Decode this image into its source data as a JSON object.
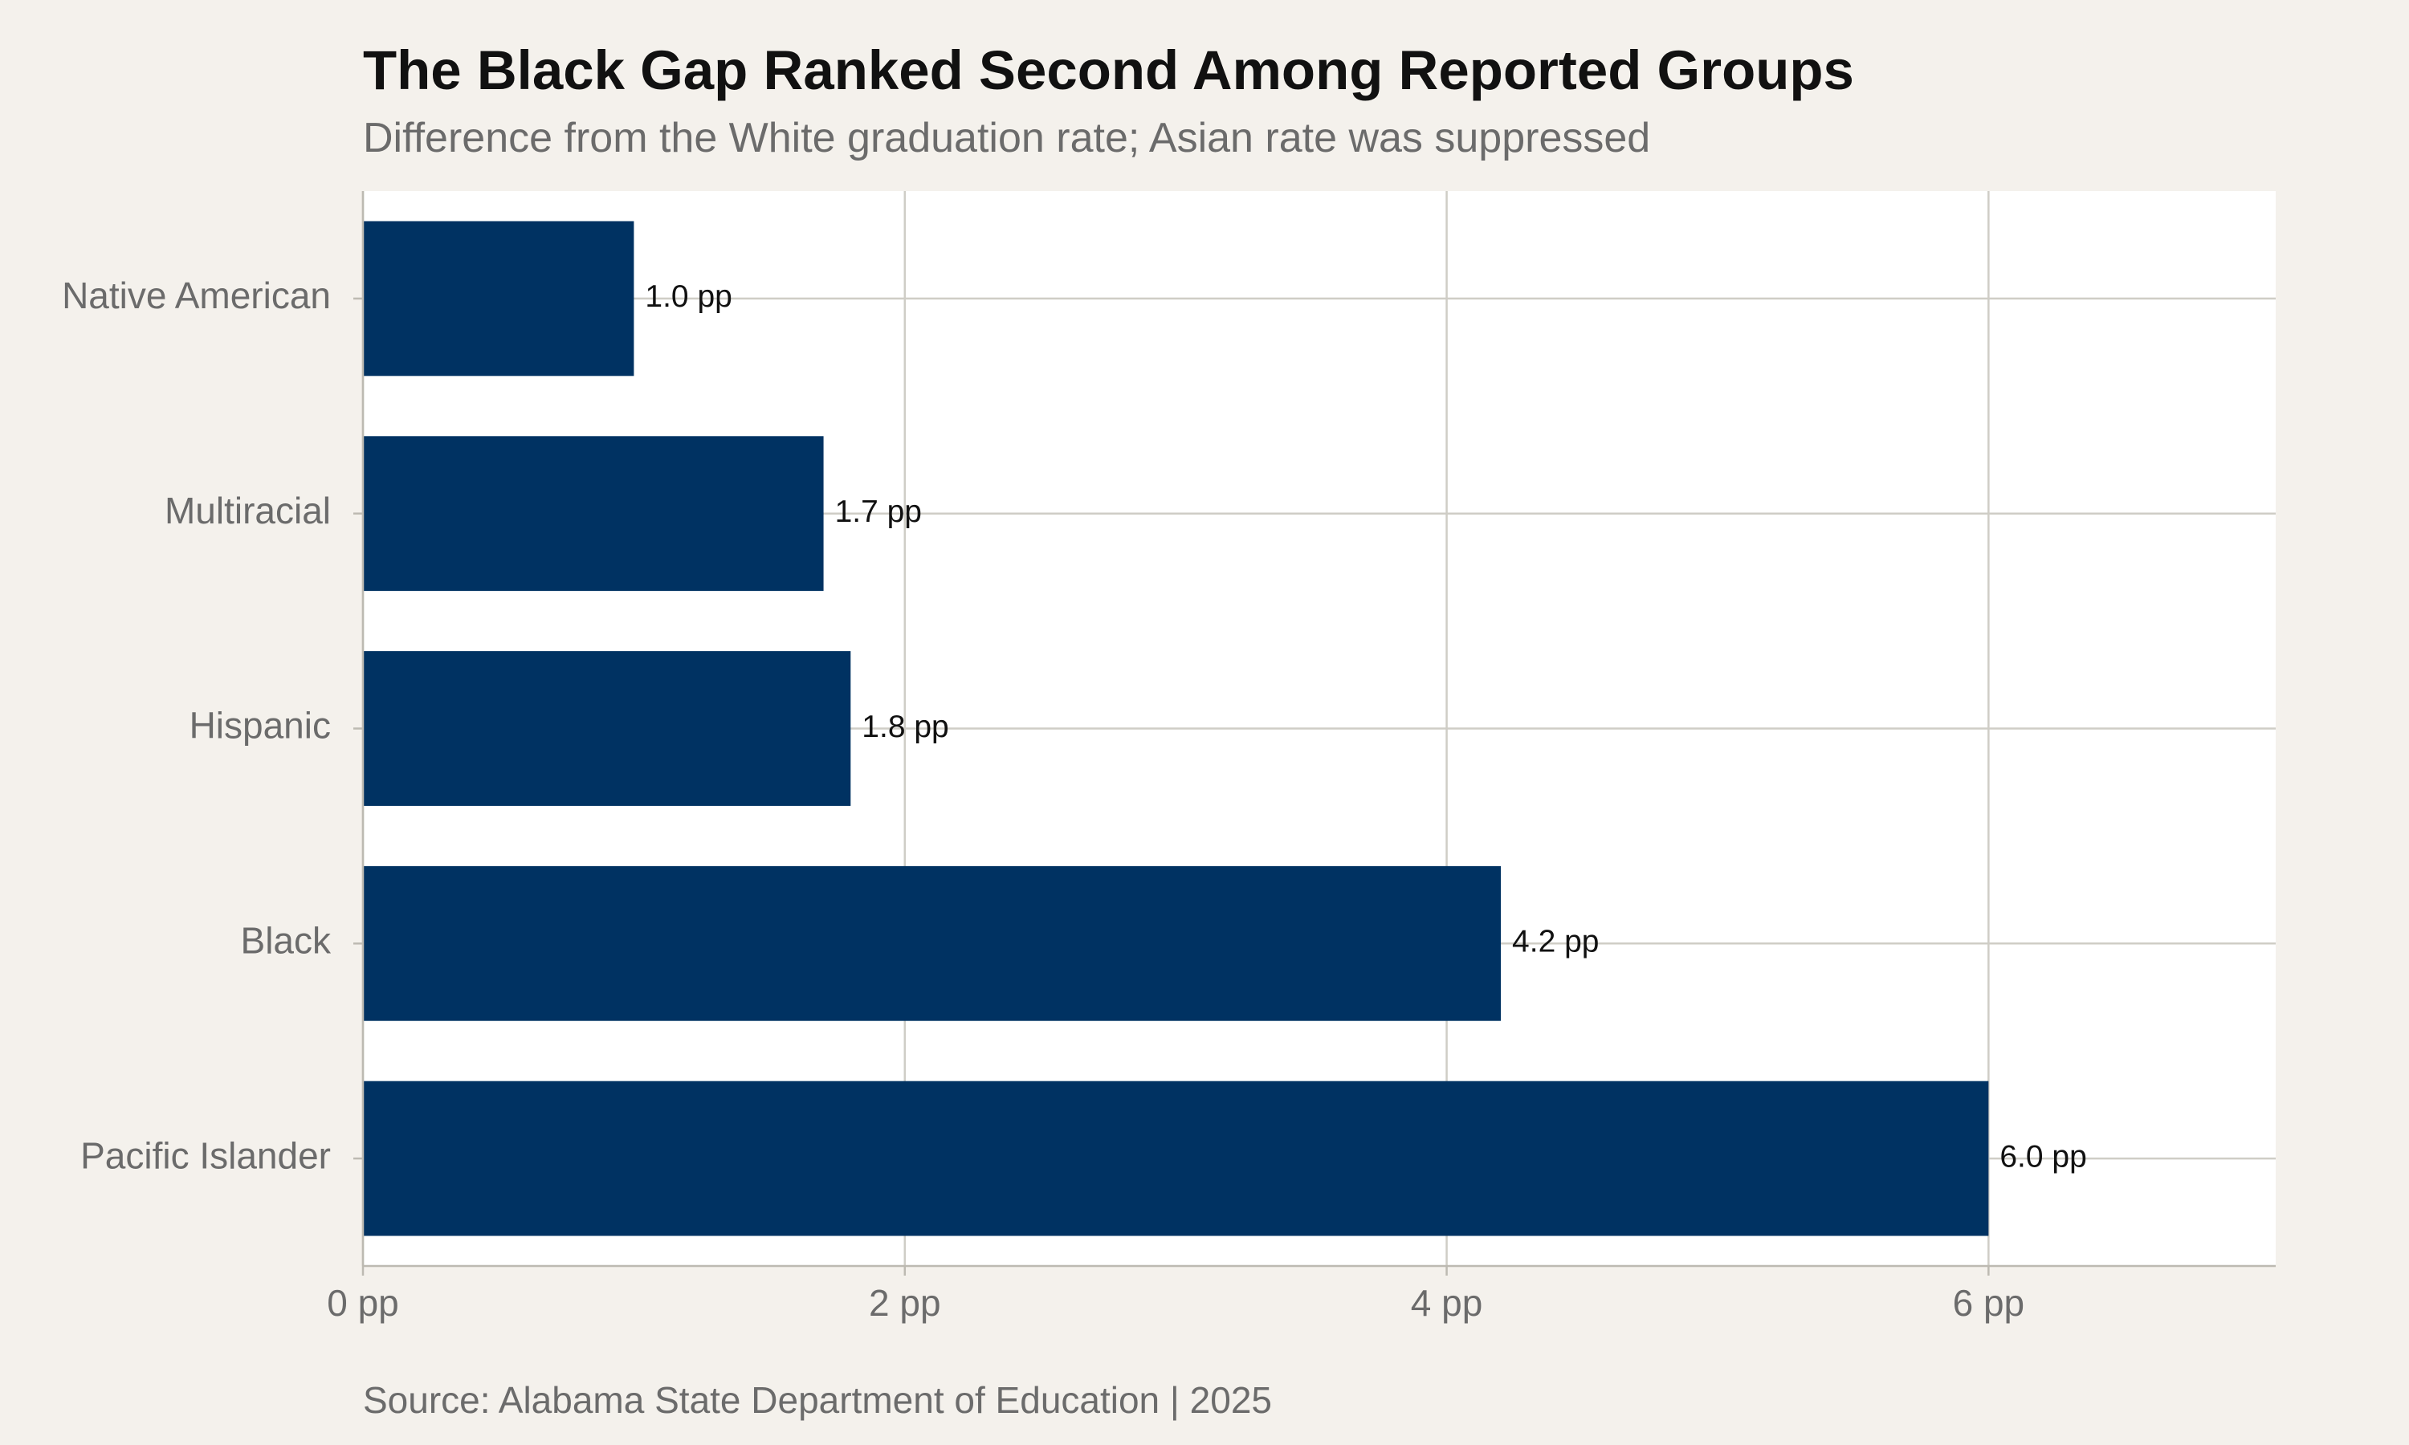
{
  "chart_data": {
    "type": "bar",
    "orientation": "horizontal",
    "title": "The Black Gap Ranked Second Among Reported Groups",
    "subtitle": "Difference from the White graduation rate; Asian rate was suppressed",
    "caption": "Source: Alabama State Department of Education | 2025",
    "xlabel": "",
    "ylabel": "",
    "categories": [
      "Native American",
      "Multiracial",
      "Hispanic",
      "Black",
      "Pacific Islander"
    ],
    "values": [
      1.0,
      1.7,
      1.8,
      4.2,
      6.0
    ],
    "value_labels": [
      "1.0 pp",
      "1.7 pp",
      "1.8 pp",
      "4.2 pp",
      "6.0 pp"
    ],
    "xlim": [
      0,
      7.06
    ],
    "x_ticks": [
      0,
      2,
      4,
      6
    ],
    "x_tick_labels": [
      "0 pp",
      "2 pp",
      "4 pp",
      "6 pp"
    ],
    "grid": true,
    "legend": "none",
    "colors": {
      "bar": "#003262",
      "background": "#f4f1ec",
      "panel": "#ffffff",
      "grid": "#cfcdc6",
      "axis": "#bdbab2"
    }
  }
}
